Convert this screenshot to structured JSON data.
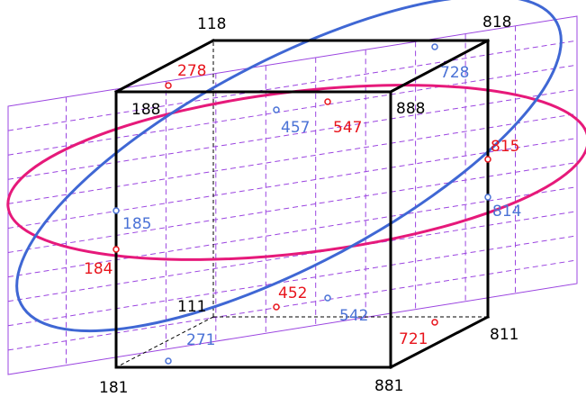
{
  "colors": {
    "cube_edge": "#000000",
    "hidden_edge": "#000000",
    "grid": "#9b45e0",
    "pink_ellipse": "#e6197a",
    "pink_labels": "#e8141c",
    "blue_ellipse": "#3f67d4",
    "blue_labels": "#4a72d6",
    "background": "#ffffff"
  },
  "vertex_labels": {
    "v118": "118",
    "v818": "818",
    "v188": "188",
    "v888": "888",
    "v111": "111",
    "v811": "811",
    "v181": "181",
    "v881": "881"
  },
  "pink_labels": {
    "p278": "278",
    "p547": "547",
    "p815": "815",
    "p184": "184",
    "p452": "452",
    "p721": "721"
  },
  "blue_labels": {
    "b728": "728",
    "b457": "457",
    "b185": "185",
    "b814": "814",
    "b542": "542",
    "b271": "271"
  }
}
